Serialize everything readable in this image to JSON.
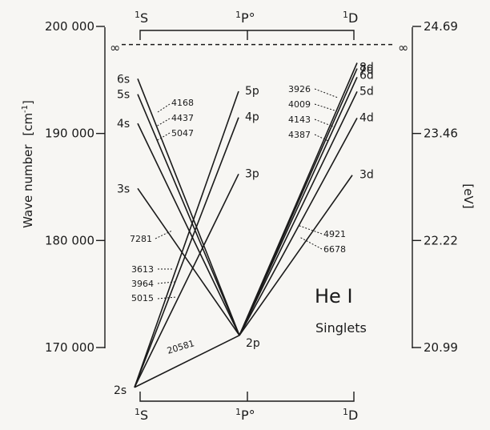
{
  "left_axis": {
    "title": "Wave number",
    "unit": "[cm",
    "unit_sup": "-1",
    "unit_close": "]",
    "ticks": [
      {
        "value": 200000,
        "label": "200 000"
      },
      {
        "value": 190000,
        "label": "190 000"
      },
      {
        "value": 180000,
        "label": "180 000"
      },
      {
        "value": 170000,
        "label": "170 000"
      }
    ]
  },
  "right_axis": {
    "title": "[eV]",
    "ticks": [
      {
        "value": 200000,
        "label": "24.69"
      },
      {
        "value": 190000,
        "label": "23.46"
      },
      {
        "value": 180000,
        "label": "22.22"
      },
      {
        "value": 170000,
        "label": "20.99"
      }
    ]
  },
  "columns": {
    "top": [
      {
        "sup": "1",
        "base": "S"
      },
      {
        "sup": "1",
        "base": "P°"
      },
      {
        "sup": "1",
        "base": "D"
      }
    ],
    "bottom": [
      {
        "sup": "1",
        "base": "S"
      },
      {
        "sup": "1",
        "base": "P°"
      },
      {
        "sup": "1",
        "base": "D"
      }
    ]
  },
  "infinity_labels": {
    "left": "∞",
    "right": "∞"
  },
  "levels": {
    "S": [
      {
        "label": "2s",
        "wavenumber": 166278
      },
      {
        "label": "3s",
        "wavenumber": 184865
      },
      {
        "label": "4s",
        "wavenumber": 190940
      },
      {
        "label": "5s",
        "wavenumber": 193663
      },
      {
        "label": "6s",
        "wavenumber": 195115
      }
    ],
    "P": [
      {
        "label": "2p",
        "wavenumber": 171135
      },
      {
        "label": "3p",
        "wavenumber": 186210
      },
      {
        "label": "4p",
        "wavenumber": 191493
      },
      {
        "label": "5p",
        "wavenumber": 193943
      }
    ],
    "D": [
      {
        "label": "3d",
        "wavenumber": 186105
      },
      {
        "label": "4d",
        "wavenumber": 191447
      },
      {
        "label": "5d",
        "wavenumber": 193917
      },
      {
        "label": "6d",
        "wavenumber": 195260
      },
      {
        "label": "7d",
        "wavenumber": 196070
      },
      {
        "label": "8d",
        "wavenumber": 196596
      }
    ]
  },
  "transitions": [
    {
      "from": "S.0",
      "to": "P.0",
      "wavelength": "20581"
    },
    {
      "from": "S.0",
      "to": "P.1",
      "wavelength": "5015"
    },
    {
      "from": "S.0",
      "to": "P.2",
      "wavelength": "3964"
    },
    {
      "from": "S.0",
      "to": "P.3",
      "wavelength": "3613"
    },
    {
      "from": "S.1",
      "to": "P.0",
      "wavelength": "7281"
    },
    {
      "from": "S.2",
      "to": "P.0",
      "wavelength": "5047"
    },
    {
      "from": "S.3",
      "to": "P.0",
      "wavelength": "4437"
    },
    {
      "from": "S.4",
      "to": "P.0",
      "wavelength": "4168"
    },
    {
      "from": "P.0",
      "to": "D.0",
      "wavelength": "6678"
    },
    {
      "from": "P.0",
      "to": "D.1",
      "wavelength": "4921"
    },
    {
      "from": "P.0",
      "to": "D.2",
      "wavelength": "4387"
    },
    {
      "from": "P.0",
      "to": "D.3",
      "wavelength": "4143"
    },
    {
      "from": "P.0",
      "to": "D.4",
      "wavelength": "4009"
    },
    {
      "from": "P.0",
      "to": "D.5",
      "wavelength": "3926"
    }
  ],
  "ionization_limit": 198311,
  "title": {
    "main": "He I",
    "sub": "Singlets"
  }
}
